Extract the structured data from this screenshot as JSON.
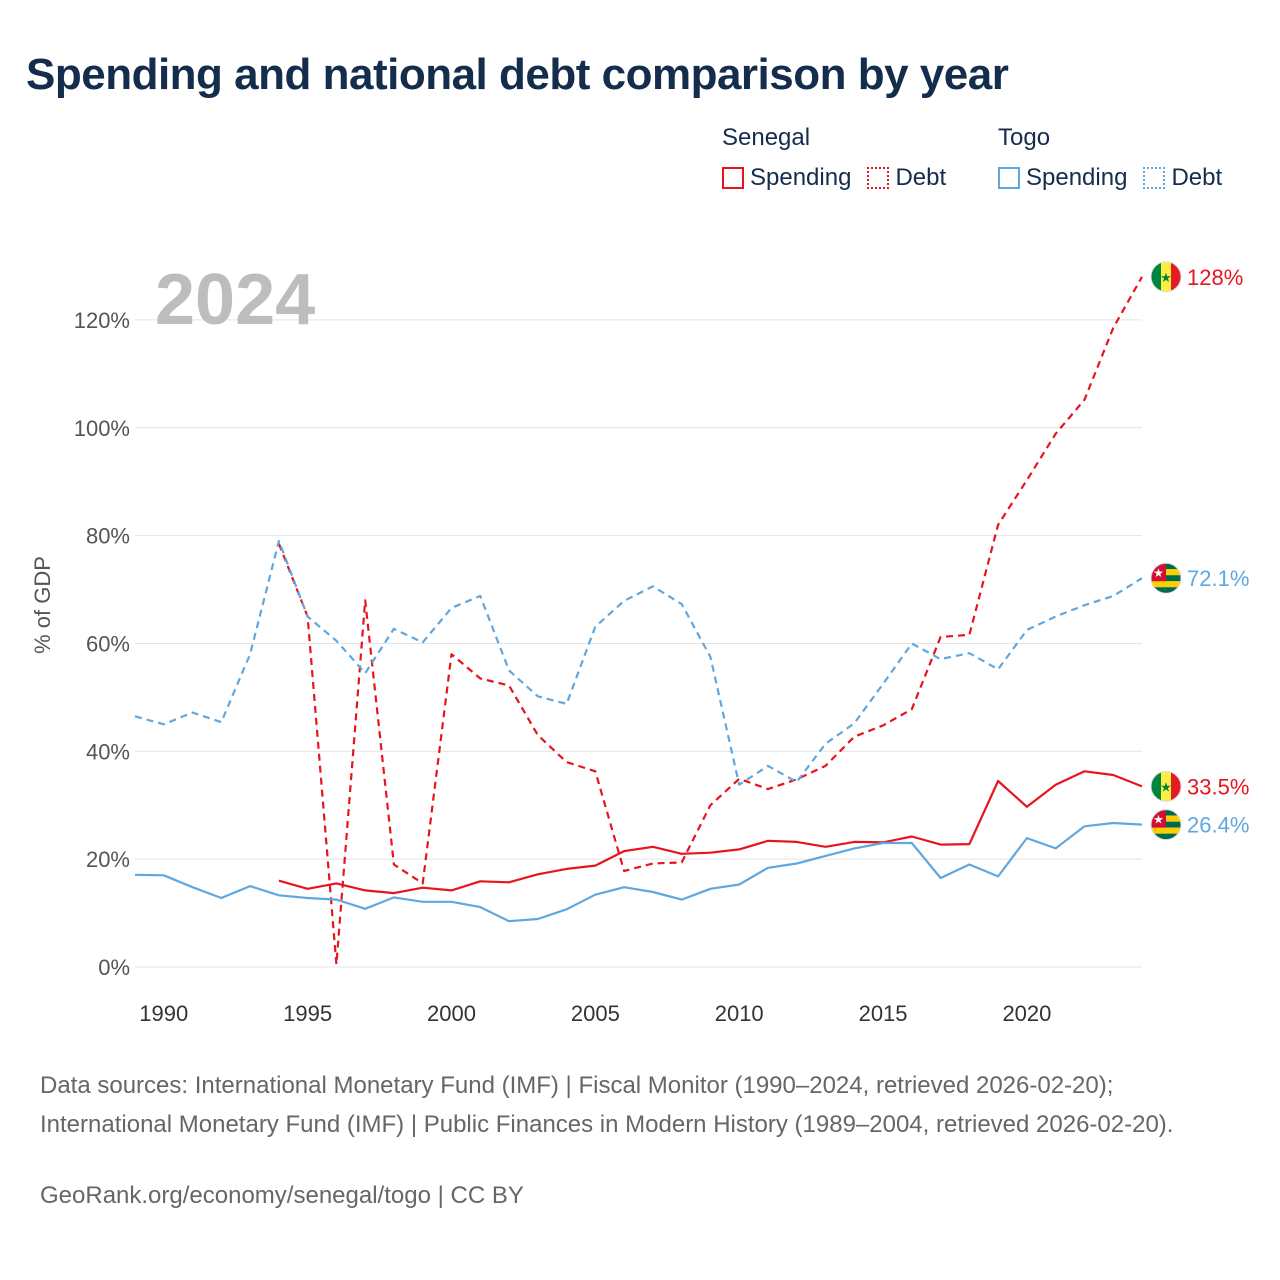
{
  "title": "Spending and national debt comparison by year",
  "legend": {
    "groups": [
      {
        "name": "Senegal",
        "items": [
          {
            "label": "Spending",
            "color": "#e8141c",
            "style": "solid"
          },
          {
            "label": "Debt",
            "color": "#e8141c",
            "style": "dotted"
          }
        ]
      },
      {
        "name": "Togo",
        "items": [
          {
            "label": "Spending",
            "color": "#5fa7e0",
            "style": "solid"
          },
          {
            "label": "Debt",
            "color": "#5fa7e0",
            "style": "dotted"
          }
        ]
      }
    ]
  },
  "chart_data": {
    "type": "line",
    "year_label": "2024",
    "ylabel": "% of GDP",
    "xlim": [
      1989,
      2024
    ],
    "ylim": [
      0,
      130
    ],
    "x_ticks": [
      1990,
      1995,
      2000,
      2005,
      2010,
      2015,
      2020
    ],
    "y_ticks": [
      0,
      20,
      40,
      60,
      80,
      100,
      120
    ],
    "y_tick_labels": [
      "0%",
      "20%",
      "40%",
      "60%",
      "80%",
      "100%",
      "120%"
    ],
    "series": [
      {
        "name": "Senegal Spending",
        "country": "Senegal",
        "color": "#e8141c",
        "dashed": false,
        "x": [
          1994,
          1995,
          1996,
          1997,
          1998,
          1999,
          2000,
          2001,
          2002,
          2003,
          2004,
          2005,
          2006,
          2007,
          2008,
          2009,
          2010,
          2011,
          2012,
          2013,
          2014,
          2015,
          2016,
          2017,
          2018,
          2019,
          2020,
          2021,
          2022,
          2023,
          2024
        ],
        "values": [
          16,
          14.5,
          15.5,
          14.2,
          13.7,
          14.7,
          14.2,
          15.9,
          15.7,
          17.2,
          18.2,
          18.8,
          21.5,
          22.3,
          21,
          21.2,
          21.8,
          23.4,
          23.2,
          22.3,
          23.2,
          23.1,
          24.2,
          22.7,
          22.8,
          34.5,
          29.7,
          33.8,
          36.3,
          35.6,
          33.5
        ],
        "end_label": "33.5%"
      },
      {
        "name": "Senegal Debt",
        "country": "Senegal",
        "color": "#e8141c",
        "dashed": true,
        "x": [
          1994,
          1995,
          1996,
          1997,
          1998,
          1999,
          2000,
          2001,
          2002,
          2003,
          2004,
          2005,
          2006,
          2007,
          2008,
          2009,
          2010,
          2011,
          2012,
          2013,
          2014,
          2015,
          2016,
          2017,
          2018,
          2019,
          2020,
          2021,
          2022,
          2023,
          2024
        ],
        "values": [
          78.5,
          65,
          0.5,
          68,
          19,
          15.5,
          58,
          53.5,
          52.2,
          43,
          38,
          36.3,
          17.8,
          19.2,
          19.4,
          30,
          34.9,
          33,
          34.8,
          37.3,
          42.7,
          44.8,
          47.8,
          61.2,
          61.6,
          82,
          90.3,
          98.9,
          105.2,
          118.5,
          128
        ],
        "end_label": "128%"
      },
      {
        "name": "Togo Spending",
        "country": "Togo",
        "color": "#5fa7e0",
        "dashed": false,
        "x": [
          1989,
          1990,
          1991,
          1992,
          1993,
          1994,
          1995,
          1996,
          1997,
          1998,
          1999,
          2000,
          2001,
          2002,
          2003,
          2004,
          2005,
          2006,
          2007,
          2008,
          2009,
          2010,
          2011,
          2012,
          2013,
          2014,
          2015,
          2016,
          2017,
          2018,
          2019,
          2020,
          2021,
          2022,
          2023,
          2024
        ],
        "values": [
          17.1,
          17,
          14.8,
          12.8,
          15,
          13.3,
          12.8,
          12.5,
          10.8,
          12.9,
          12.1,
          12.1,
          11.1,
          8.5,
          8.9,
          10.7,
          13.4,
          14.8,
          13.9,
          12.5,
          14.5,
          15.3,
          18.4,
          19.2,
          20.6,
          22,
          23,
          23,
          16.5,
          19,
          16.8,
          23.9,
          22,
          26.1,
          26.7,
          26.4
        ],
        "end_label": "26.4%"
      },
      {
        "name": "Togo Debt",
        "country": "Togo",
        "color": "#5fa7e0",
        "dashed": true,
        "x": [
          1989,
          1990,
          1991,
          1992,
          1993,
          1994,
          1995,
          1996,
          1997,
          1998,
          1999,
          2000,
          2001,
          2002,
          2003,
          2004,
          2005,
          2006,
          2007,
          2008,
          2009,
          2010,
          2011,
          2012,
          2013,
          2014,
          2015,
          2016,
          2017,
          2018,
          2019,
          2020,
          2021,
          2022,
          2023,
          2024
        ],
        "values": [
          46.5,
          45,
          47.2,
          45.4,
          58,
          79,
          65,
          60.5,
          54.5,
          62.7,
          60.2,
          66.6,
          68.8,
          55,
          50.2,
          48.8,
          63.1,
          67.9,
          70.6,
          67.3,
          57.5,
          33.8,
          37.3,
          34.3,
          41.4,
          45.2,
          52.5,
          60,
          57.1,
          58.2,
          55.2,
          62.5,
          65,
          67.1,
          68.8,
          72.1
        ],
        "end_label": "72.1%"
      }
    ]
  },
  "footer": {
    "sources": "Data sources: International Monetary Fund (IMF) | Fiscal Monitor (1990–2024, retrieved 2026-02-20); International Monetary Fund (IMF) | Public Finances in Modern History (1989–2004, retrieved 2026-02-20).",
    "link": "GeoRank.org/economy/senegal/togo | CC BY"
  }
}
